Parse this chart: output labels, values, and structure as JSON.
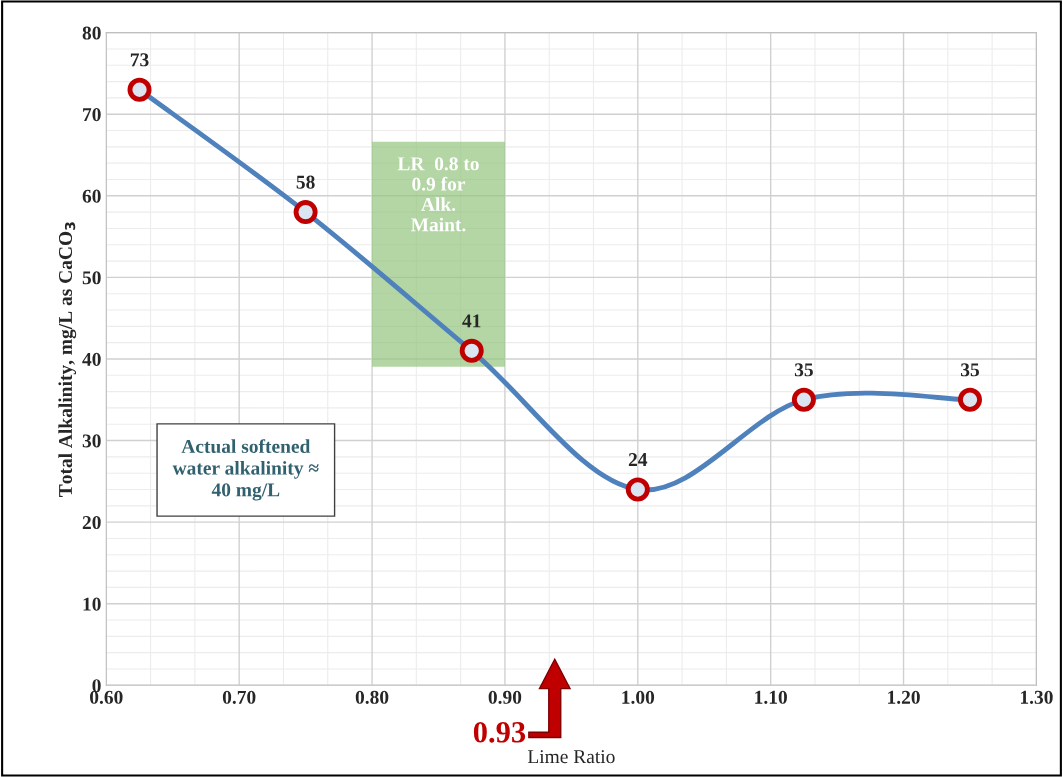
{
  "chart_data": {
    "type": "line",
    "xlabel": "Lime Ratio",
    "ylabel": "Total Alkalinity, mg/L as CaCO$_{3}$",
    "x": [
      0.625,
      0.75,
      0.875,
      1.0,
      1.125,
      1.25
    ],
    "series": [
      {
        "color": "#4f81bd",
        "values": [
          73,
          58,
          41,
          24,
          35,
          35
        ]
      }
    ],
    "marker": "circle",
    "data_labels": true,
    "grid": true,
    "xlim": [
      0.6,
      1.3
    ],
    "ylim": [
      0,
      80
    ],
    "xticks": [
      {
        "value": 0.6,
        "label": "0.60"
      },
      {
        "value": 0.7,
        "label": "0.70"
      },
      {
        "value": 0.8,
        "label": "0.80"
      },
      {
        "value": 0.9,
        "label": "0.90"
      },
      {
        "value": 1.0,
        "label": "1.00"
      },
      {
        "value": 1.1,
        "label": "1.10"
      },
      {
        "value": 1.2,
        "label": "1.20"
      },
      {
        "value": 1.3,
        "label": "1.30"
      }
    ],
    "yticks": [
      0,
      10,
      20,
      30,
      40,
      50,
      60,
      70,
      80
    ],
    "bands": [
      {
        "axis": "x",
        "from": 0.8,
        "to": 0.9,
        "label": "LR  0.8 to\n0.9 for\nAlk.\nMaint.",
        "color": "#93c47d"
      }
    ],
    "annotations": [
      "Actual softened\nwater alkalinity ≈\n40 mg/L",
      "0.93"
    ]
  }
}
